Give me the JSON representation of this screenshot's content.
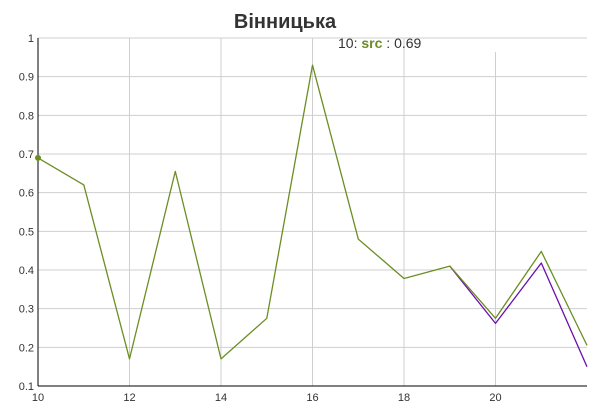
{
  "chart_data": {
    "type": "line",
    "title": "Вінницька",
    "xlabel": "",
    "ylabel": "",
    "xlim": [
      10,
      22
    ],
    "ylim": [
      0.1,
      1
    ],
    "x_ticks": [
      10,
      12,
      14,
      16,
      18,
      20
    ],
    "y_ticks": [
      0.1,
      0.2,
      0.3,
      0.4,
      0.5,
      0.6,
      0.7,
      0.8,
      0.9,
      1
    ],
    "x_tick_labels": [
      "10",
      "12",
      "14",
      "16",
      "18",
      "20"
    ],
    "y_tick_labels": [
      "0.1",
      "0.2",
      "0.3",
      "0.4",
      "0.5",
      "0.6",
      "0.7",
      "0.8",
      "0.9",
      "1"
    ],
    "grid": true,
    "series": [
      {
        "name": "src",
        "color": "#6b8e23",
        "x": [
          10,
          11,
          12,
          13,
          14,
          15,
          16,
          17,
          18,
          19,
          20,
          21,
          22
        ],
        "values": [
          0.69,
          0.62,
          0.17,
          0.655,
          0.17,
          0.275,
          0.93,
          0.48,
          0.378,
          0.41,
          0.275,
          0.448,
          0.205
        ]
      },
      {
        "color": "#6a0dad",
        "x": [
          19,
          20,
          21,
          22
        ],
        "values": [
          0.41,
          0.262,
          0.418,
          0.15
        ]
      }
    ],
    "hover_legend": {
      "x_label": "10:",
      "series_name": "src",
      "separator": ":",
      "value": "0.69"
    }
  }
}
